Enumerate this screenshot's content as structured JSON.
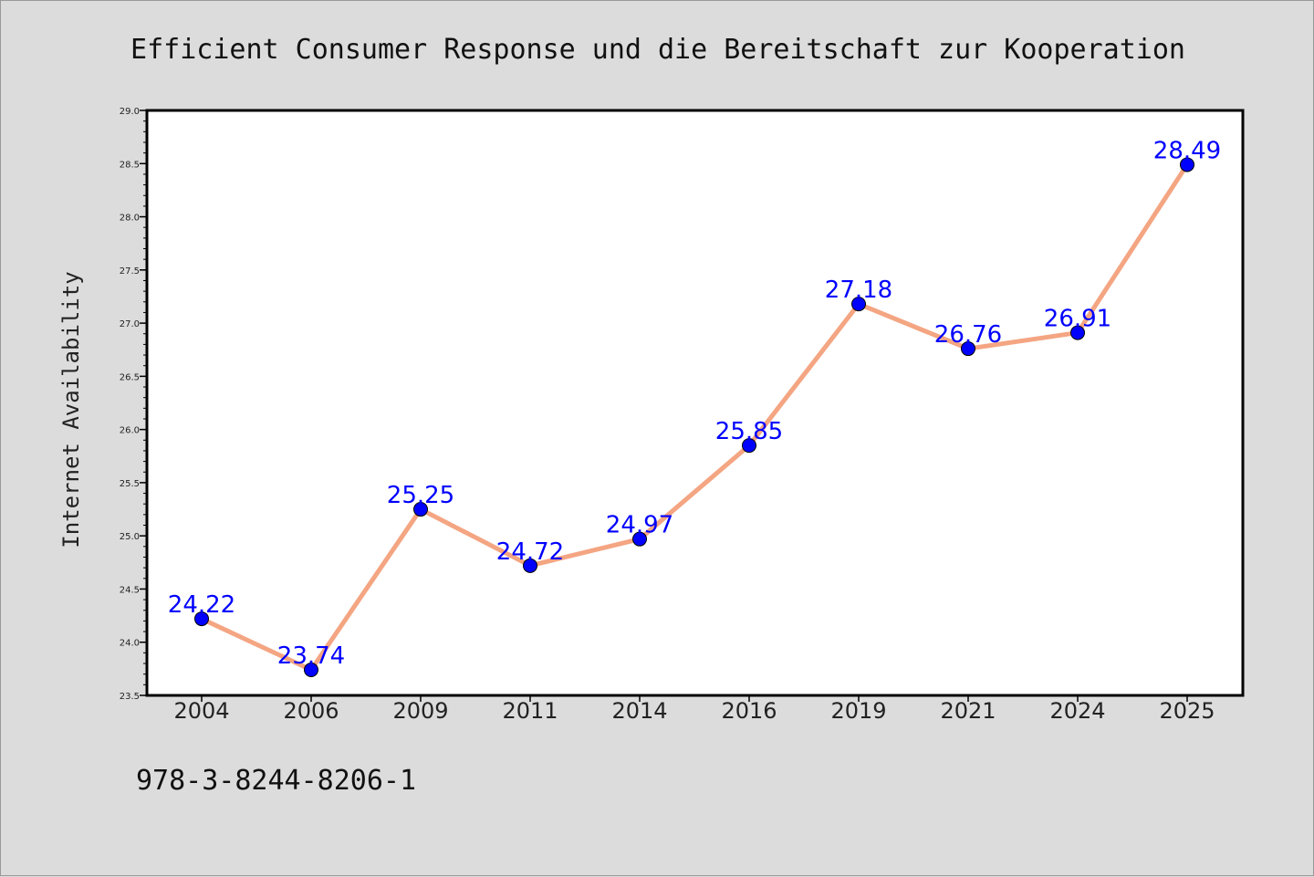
{
  "chart_data": {
    "type": "line",
    "title": "Efficient Consumer Response und die Bereitschaft zur Kooperation",
    "xlabel": "",
    "ylabel": "Internet Availability",
    "categories": [
      "2004",
      "2006",
      "2009",
      "2011",
      "2014",
      "2016",
      "2019",
      "2021",
      "2024",
      "2025"
    ],
    "values": [
      24.22,
      23.74,
      25.25,
      24.72,
      24.97,
      25.85,
      27.18,
      26.76,
      26.91,
      28.49
    ],
    "data_labels": [
      "24.22",
      "23.74",
      "25.25",
      "24.72",
      "24.97",
      "25.85",
      "27.18",
      "26.76",
      "26.91",
      "28.49"
    ],
    "ylim": [
      23.5,
      29.0
    ],
    "yticks": [
      "23.5",
      "24.0",
      "24.5",
      "25.0",
      "25.5",
      "26.0",
      "26.5",
      "27.0",
      "27.5",
      "28.0",
      "28.5",
      "29.0"
    ],
    "grid": false,
    "legend": "none",
    "line_color": "#f4a582",
    "marker_color": "#0000ff",
    "label_color": "#0000ff",
    "footer": "978-3-8244-8206-1"
  }
}
